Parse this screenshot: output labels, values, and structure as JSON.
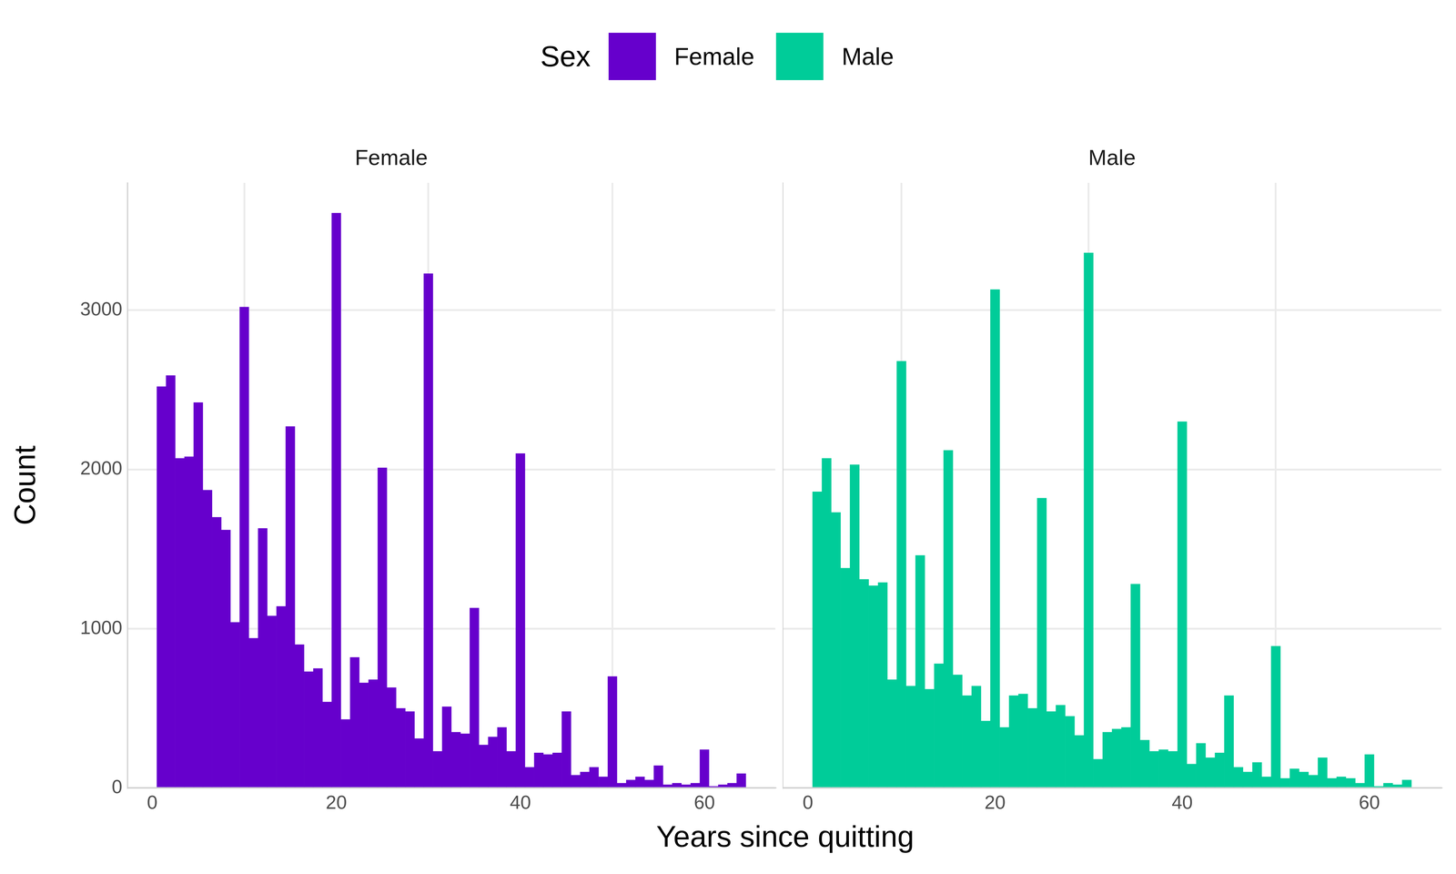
{
  "chart_data": {
    "type": "histogram",
    "legend_title": "Sex",
    "legend": "top",
    "grid": true,
    "x_label": "Years since quitting",
    "y_label": "Count",
    "xlim": [
      -2.7,
      67.7
    ],
    "xticks": [
      0,
      20,
      40,
      60
    ],
    "ylim": [
      0,
      3800
    ],
    "yticks": [
      0,
      1000,
      2000,
      3000
    ],
    "bins": [
      0.5,
      1.5,
      2.5,
      3.5,
      4.5,
      5.5,
      6.5,
      7.5,
      8.5,
      9.5,
      10.5,
      11.5,
      12.5,
      13.5,
      14.5,
      15.5,
      16.5,
      17.5,
      18.5,
      19.5,
      20.5,
      21.5,
      22.5,
      23.5,
      24.5,
      25.5,
      26.5,
      27.5,
      28.5,
      29.5,
      30.5,
      31.5,
      32.5,
      33.5,
      34.5,
      35.5,
      36.5,
      37.5,
      38.5,
      39.5,
      40.5,
      41.5,
      42.5,
      43.5,
      44.5,
      45.5,
      46.5,
      47.5,
      48.5,
      49.5,
      50.5,
      51.5,
      52.5,
      53.5,
      54.5,
      55.5,
      56.5,
      57.5,
      58.5,
      59.5,
      60.5,
      61.5,
      62.5,
      63.5,
      64.5
    ],
    "series": [
      {
        "name": "Female",
        "color": "#6600CC",
        "values": [
          2520,
          2590,
          2070,
          2080,
          2420,
          1870,
          1700,
          1620,
          1040,
          3020,
          940,
          1630,
          1080,
          1140,
          2270,
          900,
          730,
          750,
          540,
          3610,
          430,
          820,
          660,
          680,
          2010,
          630,
          500,
          480,
          310,
          3230,
          230,
          510,
          350,
          340,
          1130,
          270,
          320,
          380,
          230,
          2100,
          130,
          220,
          210,
          220,
          480,
          80,
          100,
          130,
          70,
          700,
          30,
          50,
          70,
          50,
          140,
          20,
          30,
          20,
          30,
          240,
          10,
          20,
          30,
          90
        ]
      },
      {
        "name": "Male",
        "color": "#00CC99",
        "values": [
          1860,
          2070,
          1730,
          1380,
          2030,
          1310,
          1270,
          1290,
          680,
          2680,
          640,
          1460,
          620,
          780,
          2120,
          710,
          580,
          640,
          420,
          3130,
          380,
          580,
          590,
          500,
          1820,
          480,
          520,
          450,
          330,
          3360,
          180,
          350,
          370,
          380,
          1280,
          300,
          230,
          240,
          230,
          2300,
          150,
          280,
          190,
          220,
          580,
          130,
          100,
          160,
          70,
          890,
          60,
          120,
          100,
          80,
          190,
          60,
          70,
          60,
          30,
          210,
          10,
          30,
          20,
          50
        ]
      }
    ]
  }
}
